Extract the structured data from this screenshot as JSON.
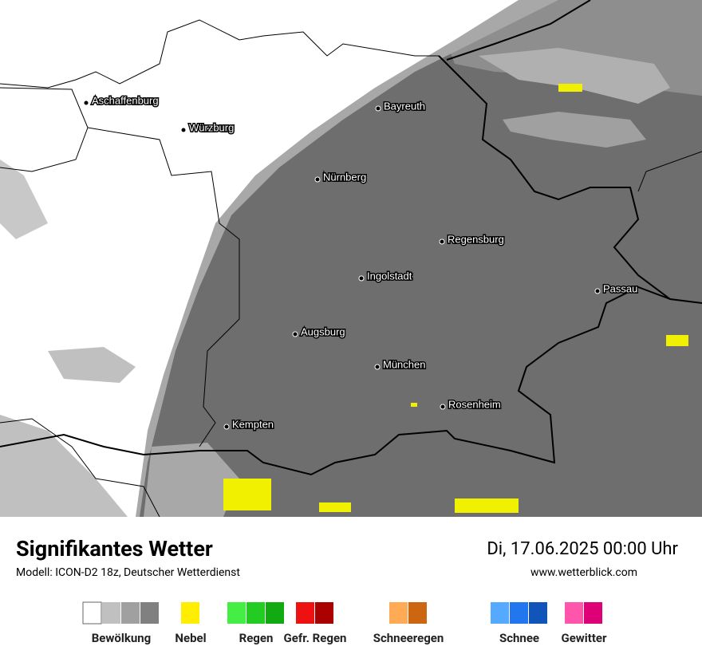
{
  "header": {
    "title": "Signifikantes Wetter",
    "subtitle": "Modell: ICON-D2 18z, Deutscher Wetterdienst",
    "date": "Di, 17.06.2025 00:00 Uhr",
    "website": "www.wetterblick.com"
  },
  "cities": [
    "Aschaffenburg",
    "Würzburg",
    "Bayreuth",
    "Nürnberg",
    "Regensburg",
    "Ingolstadt",
    "Passau",
    "Augsburg",
    "München",
    "Rosenheim",
    "Kempten"
  ],
  "legend": [
    "Bewölkung",
    "Nebel",
    "Regen",
    "Gefr. Regen",
    "Schneeregen",
    "Schnee",
    "Gewitter"
  ]
}
